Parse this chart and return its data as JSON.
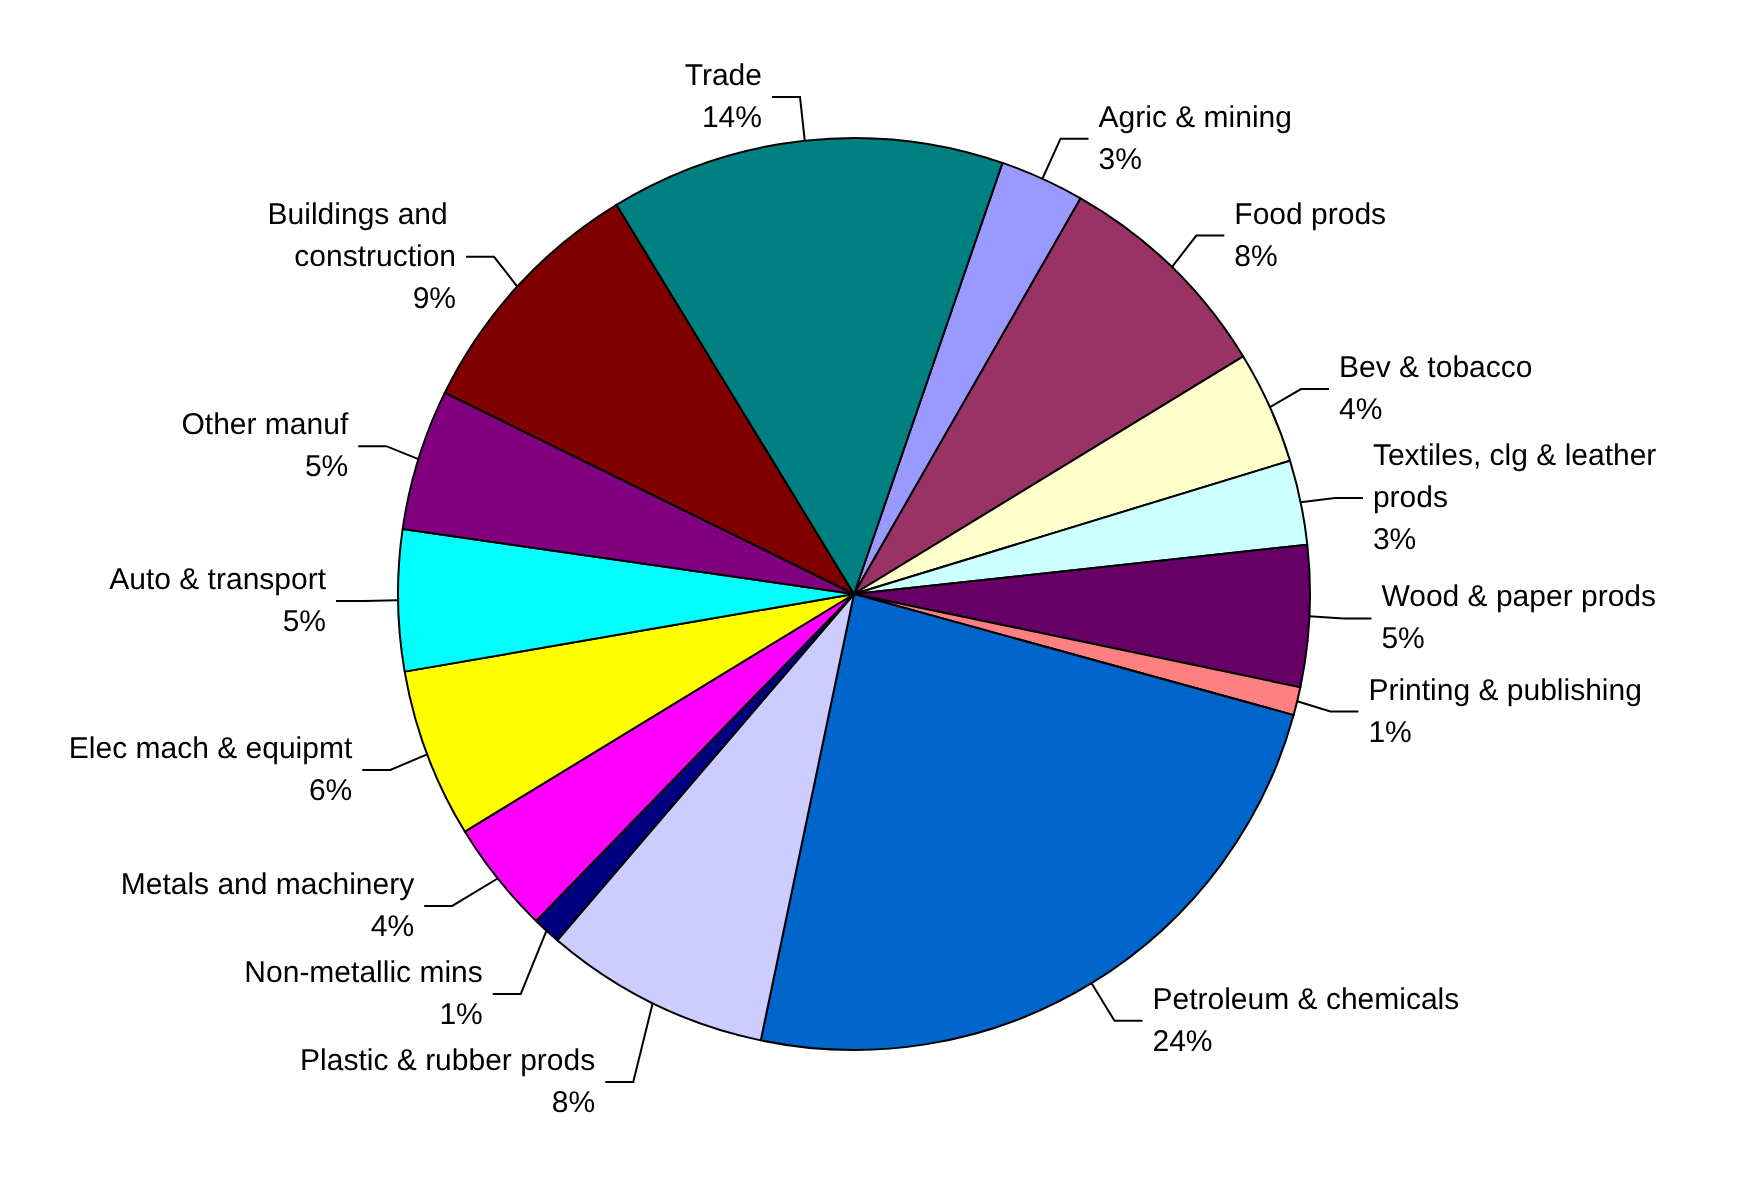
{
  "chart_data": {
    "type": "pie",
    "categories": [
      "Agric & mining",
      "Food prods",
      "Bev & tobacco",
      "Textiles, clg & leather prods",
      "Wood & paper prods",
      "Printing & publishing",
      "Petroleum & chemicals",
      "Plastic & rubber prods",
      "Non-metallic mins",
      "Metals and machinery",
      "Elec mach & equipmt",
      "Auto & transport",
      "Other manuf",
      "Buildings and construction",
      "Trade"
    ],
    "values": [
      3,
      8,
      4,
      3,
      5,
      1,
      24,
      8,
      1,
      4,
      6,
      5,
      5,
      9,
      14
    ],
    "colors": [
      "#9999ff",
      "#993366",
      "#ffffcc",
      "#ccffff",
      "#660066",
      "#ff8080",
      "#0066cc",
      "#ccccff",
      "#000080",
      "#ff00ff",
      "#ffff00",
      "#00ffff",
      "#800080",
      "#800000",
      "#008080"
    ],
    "value_labels": [
      "3%",
      "8%",
      "4%",
      "3%",
      "5%",
      "1%",
      "24%",
      "8%",
      "1%",
      "4%",
      "6%",
      "5%",
      "5%",
      "9%",
      "14%"
    ],
    "legend": false
  }
}
